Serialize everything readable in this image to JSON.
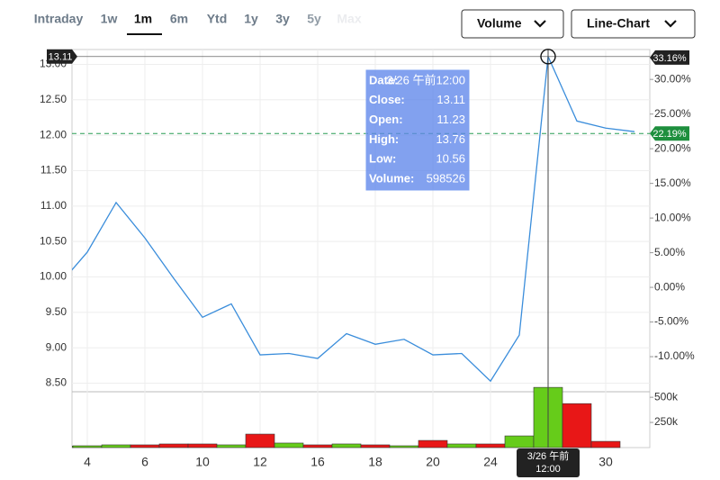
{
  "tabs": [
    "Intraday",
    "1w",
    "1m",
    "6m",
    "Ytd",
    "1y",
    "3y",
    "5y",
    "Max"
  ],
  "selected_tab": "1m",
  "dropdowns": [
    "Volume",
    "Line-Chart"
  ],
  "chart_data": {
    "type": "line",
    "categories": [
      null,
      "4",
      null,
      "6",
      null,
      "10",
      null,
      "12",
      null,
      "16",
      null,
      "18",
      null,
      "20",
      null,
      "24",
      null,
      null,
      null,
      "30",
      null
    ],
    "series": [
      {
        "color": "#3a8ddb",
        "values": [
          9.88,
          10.35,
          11.05,
          10.55,
          9.98,
          9.43,
          9.62,
          8.9,
          8.92,
          8.85,
          9.2,
          9.05,
          9.12,
          8.9,
          8.92,
          8.53,
          9.18,
          13.11,
          12.2,
          12.1,
          12.05
        ]
      },
      {
        "type": "bar",
        "axis": "volume",
        "values": [
          15000,
          18000,
          27000,
          27000,
          36000,
          36000,
          27000,
          134000,
          45000,
          27000,
          36000,
          27000,
          18000,
          71000,
          36000,
          36000,
          116000,
          598526,
          437000,
          62000,
          0
        ],
        "colors": [
          "#66cc1a",
          "#66cc1a",
          "#66cc1a",
          "#e81717",
          "#e81717",
          "#e81717",
          "#66cc1a",
          "#e81717",
          "#66cc1a",
          "#e81717",
          "#66cc1a",
          "#e81717",
          "#66cc1a",
          "#e81717",
          "#66cc1a",
          "#e81717",
          "#66cc1a",
          "#66cc1a",
          "#e81717",
          "#e81717",
          "#66cc1a"
        ]
      }
    ],
    "ylim": [
      8.38,
      13.12
    ],
    "yticks": [
      {
        "value": 8.5,
        "label": "8.50"
      },
      {
        "value": 9,
        "label": "9.00"
      },
      {
        "value": 9.5,
        "label": "9.50"
      },
      {
        "value": 10,
        "label": "10.00"
      },
      {
        "value": 10.5,
        "label": "10.50"
      },
      {
        "value": 11,
        "label": "11.00"
      },
      {
        "value": 11.5,
        "label": "11.50"
      },
      {
        "value": 12,
        "label": "12.00"
      },
      {
        "value": 12.5,
        "label": "12.50"
      },
      {
        "value": 13,
        "label": "13.00"
      }
    ],
    "y2lim": [
      -15.06,
      33.4
    ],
    "y2ticks": [
      {
        "value": -10,
        "label": "-10.00%"
      },
      {
        "value": -5,
        "label": "-5.00%"
      },
      {
        "value": 0,
        "label": "0.00%"
      },
      {
        "value": 5,
        "label": "5.00%"
      },
      {
        "value": 10,
        "label": "10.00%"
      },
      {
        "value": 15,
        "label": "15.00%"
      },
      {
        "value": 20,
        "label": "20.00%"
      },
      {
        "value": 25,
        "label": "25.00%"
      },
      {
        "value": 30,
        "label": "30.00%"
      }
    ],
    "volume_lim": [
      0,
      555000
    ],
    "volume_ticks": [
      {
        "value": 250000,
        "label": "250k"
      },
      {
        "value": 500000,
        "label": "500k"
      }
    ],
    "last_value": {
      "value": 22.19,
      "label": "22.19%"
    },
    "hover": {
      "index": 17,
      "price": 13.11,
      "change": {
        "value": 33.16,
        "label": "33.16%"
      },
      "x_label": [
        "3/26 午前",
        "12:00"
      ],
      "tooltip": [
        {
          "label": "Date:",
          "value": "3/26 午前12:00"
        },
        {
          "label": "Close:",
          "value": "13.11"
        },
        {
          "label": "Open:",
          "value": "11.23"
        },
        {
          "label": "High:",
          "value": "13.76"
        },
        {
          "label": "Low:",
          "value": "10.56"
        },
        {
          "label": "Volume:",
          "value": "598526"
        }
      ]
    },
    "grid": true
  }
}
